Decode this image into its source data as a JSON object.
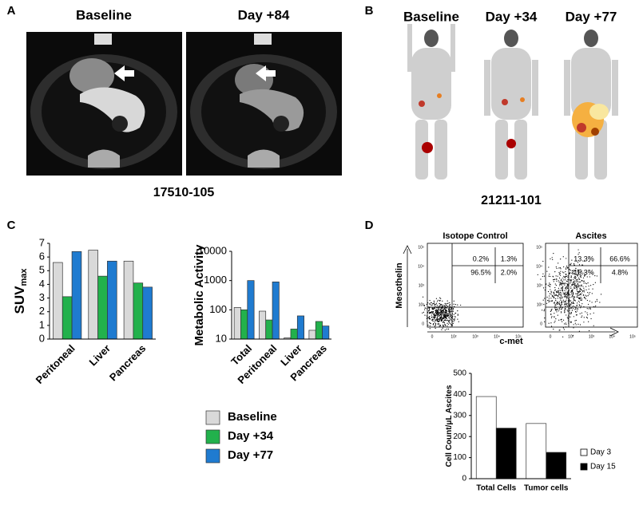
{
  "panels": {
    "a": {
      "letter": "A",
      "labels": [
        "Baseline",
        "Day +84"
      ],
      "caption": "17510-105"
    },
    "b": {
      "letter": "B",
      "labels": [
        "Baseline",
        "Day +34",
        "Day +77"
      ],
      "caption": "21211-101"
    },
    "c": {
      "letter": "C"
    },
    "d": {
      "letter": "D",
      "y_axis": "Mesothelin",
      "x_axis": "c-met",
      "flow_ticks": [
        "0",
        "10²",
        "10³",
        "10⁴",
        "10⁵"
      ],
      "flow": [
        {
          "title": "Isotope Control",
          "quadrants": [
            "0.2%",
            "1.3%",
            "96.5%",
            "2.0%"
          ]
        },
        {
          "title": "Ascites",
          "quadrants": [
            "13.3%",
            "66.6%",
            "15.3%",
            "4.8%"
          ]
        }
      ]
    }
  },
  "chart_data": [
    {
      "type": "bar",
      "ylabel": "SUV",
      "ylabel_subscript": "max",
      "categories": [
        "Peritoneal",
        "Liver",
        "Pancreas"
      ],
      "series": [
        {
          "name": "Baseline",
          "color": "#d9d9d9",
          "values": [
            5.6,
            6.5,
            5.7
          ]
        },
        {
          "name": "Day +34",
          "color": "#22b14c",
          "values": [
            3.1,
            4.6,
            4.1
          ]
        },
        {
          "name": "Day +77",
          "color": "#1f7bd0",
          "values": [
            6.4,
            5.7,
            3.8
          ]
        }
      ],
      "ylim": [
        0,
        7
      ],
      "yticks": [
        0,
        1,
        2,
        3,
        4,
        5,
        6,
        7
      ],
      "grid": false
    },
    {
      "type": "bar",
      "ylabel": "Metabolic Activity",
      "log_scale": true,
      "categories": [
        "Total",
        "Peritoneal",
        "Liver",
        "Pancreas"
      ],
      "series": [
        {
          "name": "Baseline",
          "color": "#d9d9d9",
          "values": [
            120,
            90,
            11,
            20
          ]
        },
        {
          "name": "Day +34",
          "color": "#22b14c",
          "values": [
            100,
            45,
            22,
            40
          ]
        },
        {
          "name": "Day +77",
          "color": "#1f7bd0",
          "values": [
            1000,
            900,
            62,
            28
          ]
        }
      ],
      "ylim": [
        10,
        10000
      ],
      "yticks": [
        10,
        100,
        1000,
        10000
      ],
      "grid": false
    },
    {
      "type": "bar",
      "ylabel": "Cell Count/μL Ascites",
      "categories": [
        "Total Cells",
        "Tumor cells"
      ],
      "series": [
        {
          "name": "Day 3",
          "color": "#ffffff",
          "values": [
            390,
            262
          ]
        },
        {
          "name": "Day 15",
          "color": "#000000",
          "values": [
            240,
            125
          ]
        }
      ],
      "ylim": [
        0,
        500
      ],
      "yticks": [
        0,
        100,
        200,
        300,
        400,
        500
      ],
      "grid": false
    }
  ]
}
